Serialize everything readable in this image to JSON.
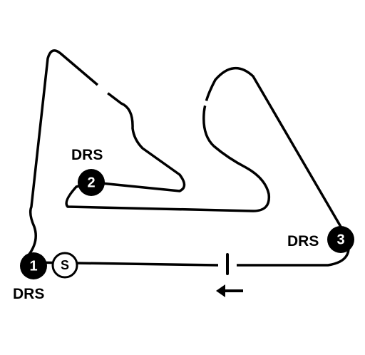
{
  "colors": {
    "track": "#000000",
    "background": "#ffffff",
    "marker_fill": "#000000",
    "marker_text": "#ffffff"
  },
  "drs_zones": [
    {
      "number": "1",
      "label": "DRS"
    },
    {
      "number": "2",
      "label": "DRS"
    },
    {
      "number": "3",
      "label": "DRS"
    }
  ],
  "start": {
    "label": "S"
  },
  "direction": {
    "icon": "arrow-left-icon"
  }
}
